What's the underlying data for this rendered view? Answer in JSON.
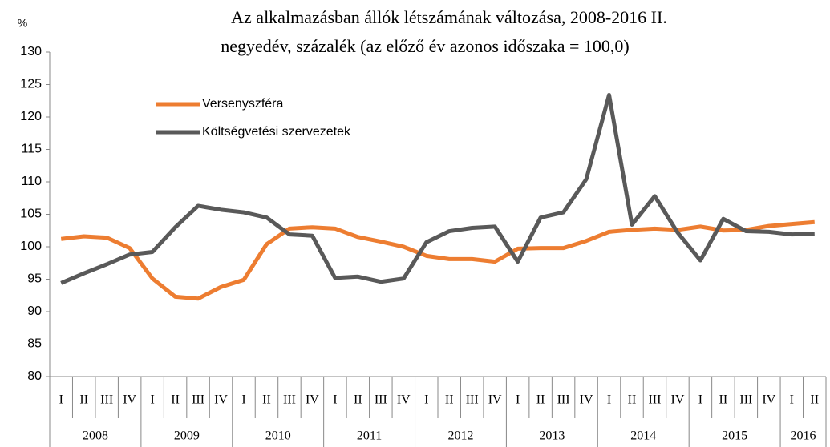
{
  "chart_data": {
    "type": "line",
    "title": [
      "Az alkalmazásban állók létszámának változása, 2008-2016 II.",
      "negyedév,  százalék (az előző év azonos időszaka = 100,0)"
    ],
    "y_unit": "%",
    "categories": [
      "I",
      "II",
      "III",
      "IV",
      "I",
      "II",
      "III",
      "IV",
      "I",
      "II",
      "III",
      "IV",
      "I",
      "II",
      "III",
      "IV",
      "I",
      "II",
      "III",
      "IV",
      "I",
      "II",
      "III",
      "IV",
      "I",
      "II",
      "III",
      "IV",
      "I",
      "II",
      "III",
      "IV",
      "I",
      "II"
    ],
    "year_groups": [
      "2008",
      "2009",
      "2010",
      "2011",
      "2012",
      "2013",
      "2014",
      "2015",
      "2016"
    ],
    "series": [
      {
        "name": "Versenyszféra",
        "color": "#ed7d31",
        "values": [
          101.2,
          101.6,
          101.4,
          99.8,
          95.1,
          92.3,
          92.0,
          93.8,
          94.9,
          100.4,
          102.8,
          103.0,
          102.8,
          101.5,
          100.8,
          100.0,
          98.6,
          98.1,
          98.1,
          97.7,
          99.7,
          99.8,
          99.8,
          100.9,
          102.3,
          102.6,
          102.8,
          102.6,
          103.1,
          102.5,
          102.6,
          103.2,
          103.5,
          103.8
        ]
      },
      {
        "name": "Költségvetési szervezetek",
        "color": "#595959",
        "values": [
          94.4,
          95.9,
          97.3,
          98.8,
          99.2,
          103.0,
          106.3,
          105.7,
          105.3,
          104.5,
          101.9,
          101.7,
          95.2,
          95.4,
          94.6,
          95.1,
          100.7,
          102.4,
          102.9,
          103.1,
          97.7,
          104.5,
          105.3,
          110.4,
          123.4,
          103.4,
          107.8,
          102.2,
          97.9,
          104.3,
          102.4,
          102.3,
          101.9,
          102.0
        ]
      }
    ],
    "ylim": [
      80,
      130
    ],
    "yticks": [
      80,
      85,
      90,
      95,
      100,
      105,
      110,
      115,
      120,
      125,
      130
    ],
    "grid": false,
    "legend": "top-left"
  }
}
